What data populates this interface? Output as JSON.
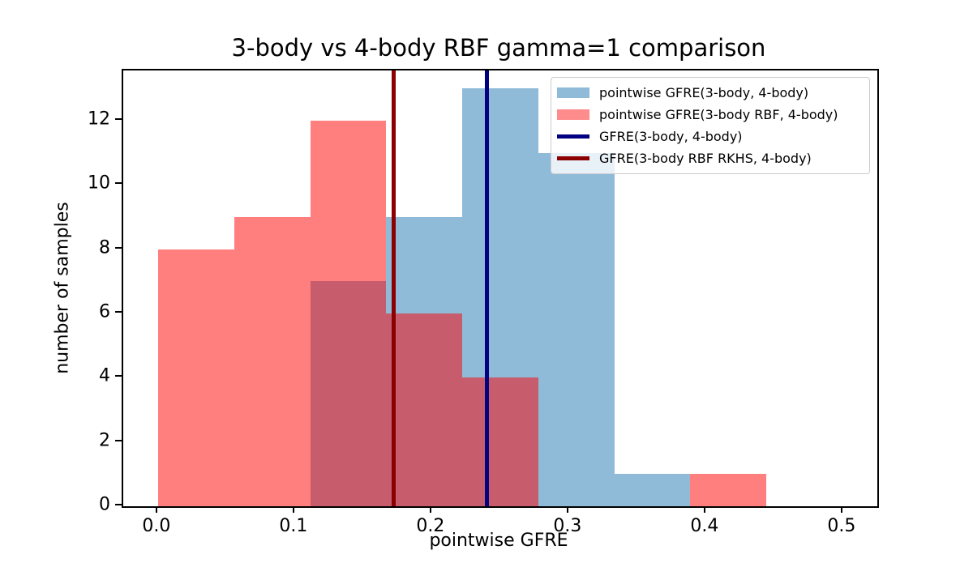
{
  "chart_data": {
    "type": "histogram",
    "title": "3-body vs 4-body RBF gamma=1 comparison",
    "xlabel": "pointwise GFRE",
    "ylabel": "number of samples",
    "xlim": [
      -0.0254,
      0.5249
    ],
    "ylim": [
      0,
      13.56
    ],
    "grid": false,
    "xticks": [
      {
        "value": 0.0,
        "label": "0.0"
      },
      {
        "value": 0.1,
        "label": "0.1"
      },
      {
        "value": 0.2,
        "label": "0.2"
      },
      {
        "value": 0.3,
        "label": "0.3"
      },
      {
        "value": 0.4,
        "label": "0.4"
      },
      {
        "value": 0.5,
        "label": "0.5"
      }
    ],
    "yticks": [
      {
        "value": 0,
        "label": "0"
      },
      {
        "value": 2,
        "label": "2"
      },
      {
        "value": 4,
        "label": "4"
      },
      {
        "value": 6,
        "label": "6"
      },
      {
        "value": 8,
        "label": "8"
      },
      {
        "value": 10,
        "label": "10"
      },
      {
        "value": 12,
        "label": "12"
      }
    ],
    "series": [
      {
        "key": "blue",
        "name": "pointwise GFRE(3-body, 4-body)",
        "type": "histogram",
        "fill_color": "rgba(31,119,180,0.5)",
        "legend_swatch_color": "#8fbbd9",
        "bin_start": 0.111,
        "bin_width": 0.0555,
        "counts": [
          7,
          9,
          13,
          11,
          1
        ]
      },
      {
        "key": "red",
        "name": "pointwise GFRE(3-body RBF, 4-body)",
        "type": "histogram",
        "fill_color": "rgba(255,0,0,0.5)",
        "legend_swatch_color": "#ff8c8c",
        "bin_start": 0.0,
        "bin_width": 0.0555,
        "counts": [
          8,
          9,
          12,
          6,
          4,
          0,
          0,
          1
        ]
      }
    ],
    "vlines": [
      {
        "key": "gfre-3body-4body",
        "name": "GFRE(3-body, 4-body)",
        "x": 0.24,
        "color": "#000080",
        "linewidth": 5
      },
      {
        "key": "gfre-3body-rbf-rkhs-4body",
        "name": "GFRE(3-body RBF RKHS, 4-body)",
        "x": 0.172,
        "color": "#8b0000",
        "linewidth": 5
      }
    ],
    "legend": {
      "position": "upper right",
      "entries": [
        {
          "label": "pointwise GFRE(3-body, 4-body)",
          "swatch": "patch",
          "color": "#8fbbd9",
          "key": "blue-hist"
        },
        {
          "label": "pointwise GFRE(3-body RBF, 4-body)",
          "swatch": "patch",
          "color": "#ff8c8c",
          "key": "red-hist"
        },
        {
          "label": "GFRE(3-body, 4-body)",
          "swatch": "line",
          "color": "#000080",
          "key": "navy-line"
        },
        {
          "label": "GFRE(3-body RBF RKHS, 4-body)",
          "swatch": "line",
          "color": "#8b0000",
          "key": "darkred-line"
        }
      ]
    }
  }
}
